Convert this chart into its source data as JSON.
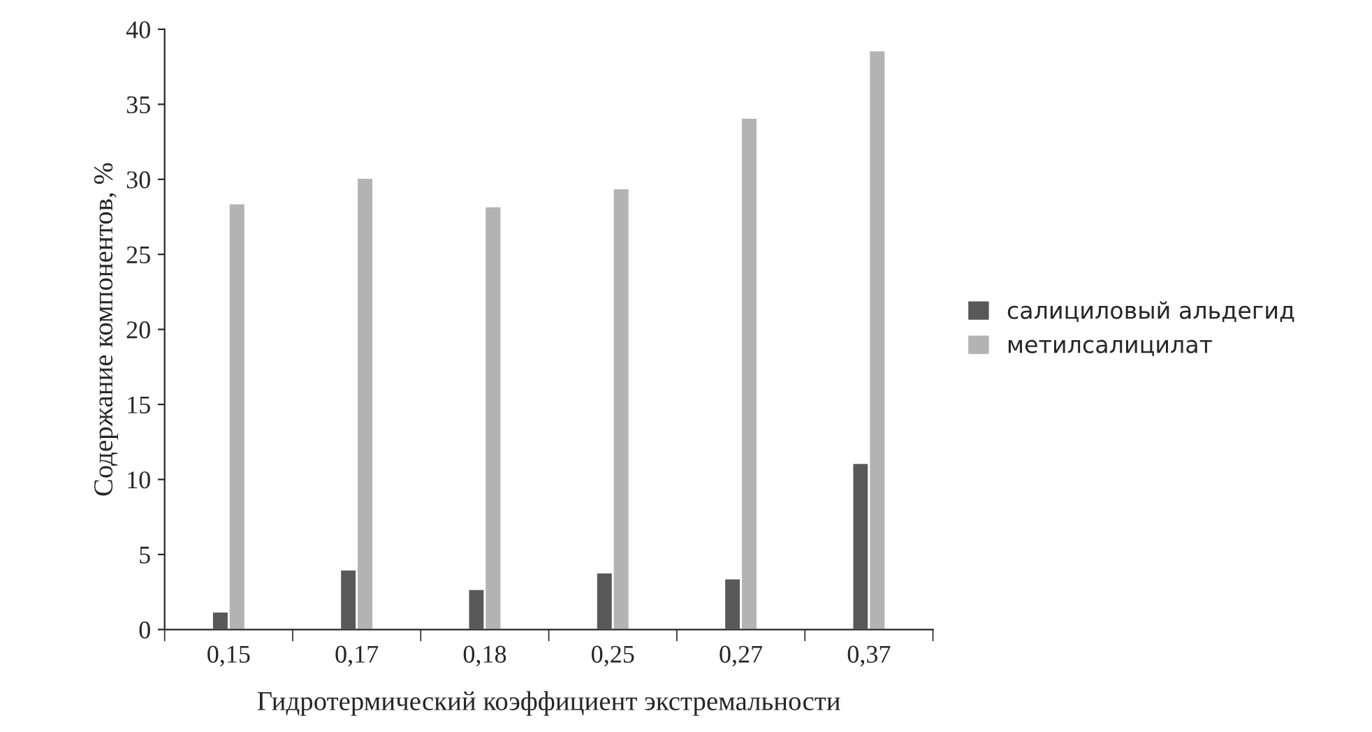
{
  "chart_data": {
    "type": "bar",
    "xlabel": "Гидротермический коэффициент экстремальности",
    "ylabel": "Содержание компонентов, %",
    "categories": [
      "0,15",
      "0,17",
      "0,18",
      "0,25",
      "0,27",
      "0,37"
    ],
    "series": [
      {
        "name": "салициловый альдегид",
        "color": "#595959",
        "values": [
          1.2,
          4.0,
          2.7,
          3.8,
          3.4,
          11.1
        ]
      },
      {
        "name": "метилсалицилат",
        "color": "#b3b3b3",
        "values": [
          28.4,
          30.1,
          28.2,
          29.4,
          34.1,
          38.6
        ]
      }
    ],
    "ylim": [
      0,
      40
    ],
    "yticks": [
      0,
      5,
      10,
      15,
      20,
      25,
      30,
      35,
      40
    ],
    "grid": false,
    "legend": "right"
  }
}
